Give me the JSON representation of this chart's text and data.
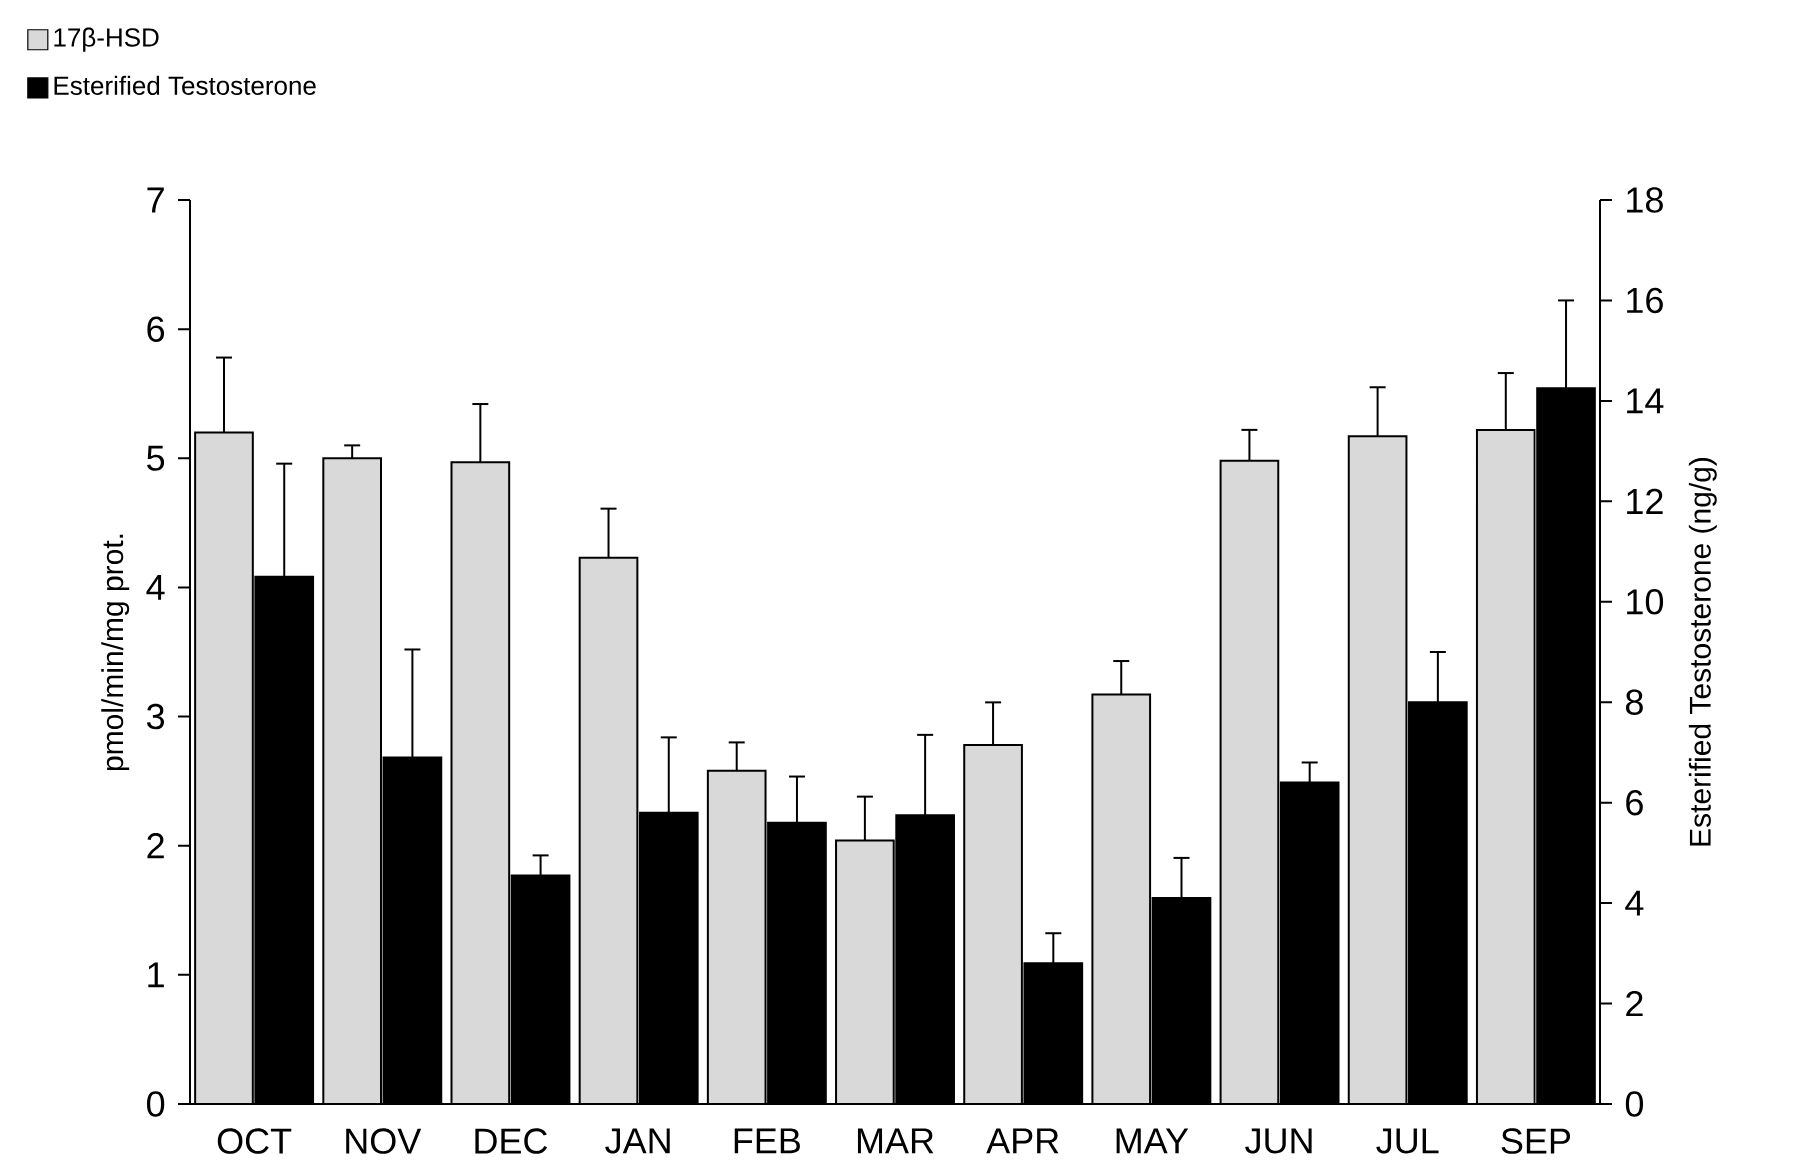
{
  "chart_data": {
    "type": "bar",
    "categories": [
      "OCT",
      "NOV",
      "DEC",
      "JAN",
      "FEB",
      "MAR",
      "APR",
      "MAY",
      "JUN",
      "JUL",
      "SEP"
    ],
    "series": [
      {
        "name": "17β-HSD",
        "color": "#d9d9d9",
        "values": [
          5.2,
          5.0,
          4.97,
          4.23,
          2.58,
          2.04,
          2.78,
          3.17,
          4.98,
          5.17,
          5.22
        ],
        "errors": [
          0.58,
          0.1,
          0.45,
          0.38,
          0.22,
          0.34,
          0.33,
          0.26,
          0.24,
          0.38,
          0.44
        ]
      },
      {
        "name": "Esterified Testosterone",
        "color": "#000000",
        "axis": "y2",
        "values": [
          10.5,
          6.9,
          4.55,
          5.8,
          5.6,
          5.75,
          2.8,
          4.1,
          6.4,
          8.0,
          14.25
        ],
        "errors": [
          2.25,
          2.15,
          0.4,
          1.5,
          0.92,
          1.6,
          0.6,
          0.8,
          0.4,
          1.0,
          1.75
        ]
      }
    ],
    "ylabel": "pmol/min/mg prot.",
    "y2label": "Esterified Testosterone (ng/g)",
    "ylim": [
      0,
      7
    ],
    "yticks": [
      0,
      1,
      2,
      3,
      4,
      5,
      6,
      7
    ],
    "y2lim": [
      0,
      18
    ],
    "y2ticks": [
      0,
      2,
      4,
      6,
      8,
      10,
      12,
      14,
      16,
      18
    ],
    "legend": "top left"
  }
}
